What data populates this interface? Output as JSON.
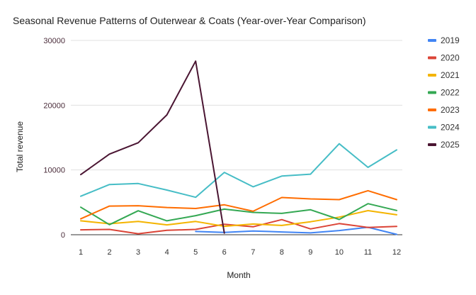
{
  "chart_data": {
    "type": "line",
    "title": "Seasonal Revenue Patterns of Outerwear & Coats (Year-over-Year Comparison)",
    "xlabel": "Month",
    "ylabel": "Total revenue",
    "x": [
      1,
      2,
      3,
      4,
      5,
      6,
      7,
      8,
      9,
      10,
      11,
      12
    ],
    "ylim": [
      0,
      30000
    ],
    "yticks": [
      0,
      10000,
      20000,
      30000
    ],
    "grid": true,
    "legend_position": "right",
    "series": [
      {
        "name": "2019",
        "color": "#4285F4",
        "values": [
          null,
          null,
          null,
          null,
          500,
          350,
          580,
          430,
          280,
          650,
          1150,
          50
        ]
      },
      {
        "name": "2020",
        "color": "#DB4437",
        "values": [
          750,
          820,
          150,
          680,
          820,
          1620,
          1230,
          2330,
          900,
          1720,
          1130,
          1280
        ]
      },
      {
        "name": "2021",
        "color": "#F4B400",
        "values": [
          2150,
          1700,
          2050,
          1520,
          2050,
          1300,
          1650,
          1430,
          2000,
          2720,
          3720,
          3080
        ]
      },
      {
        "name": "2022",
        "color": "#34A853",
        "values": [
          4250,
          1550,
          3700,
          2150,
          2950,
          3950,
          3450,
          3300,
          3850,
          2350,
          4800,
          3750
        ]
      },
      {
        "name": "2023",
        "color": "#FF6D01",
        "values": [
          2450,
          4420,
          4480,
          4200,
          4050,
          4620,
          3620,
          5750,
          5530,
          5420,
          6800,
          5420
        ]
      },
      {
        "name": "2024",
        "color": "#46BDC6",
        "values": [
          5950,
          7750,
          7900,
          6900,
          5780,
          9620,
          7400,
          9050,
          9350,
          14050,
          10400,
          13100
        ]
      },
      {
        "name": "2025",
        "color": "#4A1532",
        "values": [
          9280,
          12450,
          14200,
          18500,
          26800,
          250,
          null,
          null,
          null,
          null,
          null,
          null
        ]
      }
    ]
  }
}
